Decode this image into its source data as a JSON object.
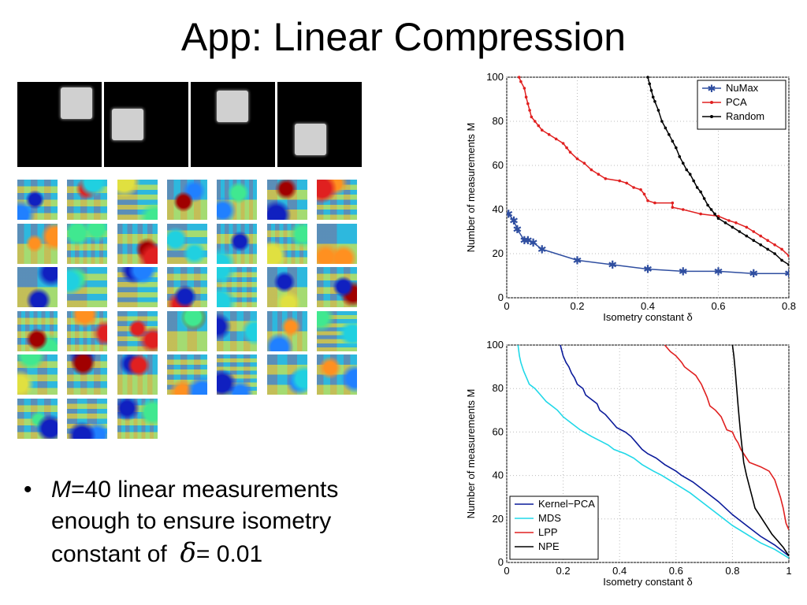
{
  "title": "App: Linear Compression",
  "bullet": {
    "var": "M",
    "line1_rest": "=40 linear measurements",
    "line2": "enough to ensure isometry",
    "line3_pre": "constant of",
    "symbol": "δ",
    "line3_post": "= 0.01"
  },
  "colors": {
    "numax": "#2f4ea0",
    "pca": "#e02020",
    "random": "#000000",
    "kernel_pca": "#0a1a9a",
    "mds": "#20d8e8",
    "lpp": "#e02020",
    "npe": "#000000"
  },
  "chart_data": [
    {
      "type": "line",
      "xlabel": "Isometry constant δ",
      "ylabel": "Number of measurements M",
      "xlim": [
        0,
        0.8
      ],
      "ylim": [
        0,
        100
      ],
      "xticks": [
        "0",
        "0.2",
        "0.4",
        "0.6",
        "0.8"
      ],
      "yticks": [
        "0",
        "20",
        "40",
        "60",
        "80",
        "100"
      ],
      "legend": "top-right",
      "series": [
        {
          "name": "NuMax",
          "color": "#2f4ea0",
          "marker": "star",
          "points": [
            [
              0.005,
              38
            ],
            [
              0.02,
              35
            ],
            [
              0.03,
              31
            ],
            [
              0.05,
              26
            ],
            [
              0.06,
              26
            ],
            [
              0.075,
              25
            ],
            [
              0.1,
              22
            ],
            [
              0.2,
              17
            ],
            [
              0.3,
              15
            ],
            [
              0.4,
              13
            ],
            [
              0.5,
              12
            ],
            [
              0.6,
              12
            ],
            [
              0.7,
              11
            ],
            [
              0.8,
              11
            ]
          ]
        },
        {
          "name": "PCA",
          "color": "#e02020",
          "marker": "dot",
          "points": [
            [
              0.035,
              100
            ],
            [
              0.04,
              98
            ],
            [
              0.05,
              95
            ],
            [
              0.055,
              91
            ],
            [
              0.06,
              88
            ],
            [
              0.065,
              85
            ],
            [
              0.07,
              82
            ],
            [
              0.08,
              80
            ],
            [
              0.09,
              78
            ],
            [
              0.1,
              76
            ],
            [
              0.12,
              74
            ],
            [
              0.14,
              72
            ],
            [
              0.16,
              70
            ],
            [
              0.17,
              68
            ],
            [
              0.18,
              66
            ],
            [
              0.2,
              63
            ],
            [
              0.22,
              61
            ],
            [
              0.24,
              58
            ],
            [
              0.26,
              56
            ],
            [
              0.28,
              54
            ],
            [
              0.32,
              53
            ],
            [
              0.34,
              52
            ],
            [
              0.36,
              50
            ],
            [
              0.38,
              49
            ],
            [
              0.39,
              47
            ],
            [
              0.4,
              44
            ],
            [
              0.42,
              43
            ],
            [
              0.47,
              43
            ],
            [
              0.47,
              41
            ],
            [
              0.5,
              40
            ],
            [
              0.55,
              38
            ],
            [
              0.6,
              37
            ],
            [
              0.63,
              35
            ],
            [
              0.65,
              34
            ],
            [
              0.68,
              32
            ],
            [
              0.7,
              30
            ],
            [
              0.72,
              28
            ],
            [
              0.74,
              26
            ],
            [
              0.76,
              24
            ],
            [
              0.78,
              22
            ],
            [
              0.8,
              19
            ]
          ]
        },
        {
          "name": "Random",
          "color": "#000000",
          "marker": "dot",
          "points": [
            [
              0.4,
              100
            ],
            [
              0.405,
              97
            ],
            [
              0.41,
              94
            ],
            [
              0.415,
              91
            ],
            [
              0.42,
              89
            ],
            [
              0.43,
              85
            ],
            [
              0.44,
              80
            ],
            [
              0.45,
              77
            ],
            [
              0.46,
              74
            ],
            [
              0.47,
              71
            ],
            [
              0.48,
              68
            ],
            [
              0.49,
              64
            ],
            [
              0.5,
              61
            ],
            [
              0.51,
              58
            ],
            [
              0.52,
              56
            ],
            [
              0.53,
              53
            ],
            [
              0.54,
              50
            ],
            [
              0.55,
              48
            ],
            [
              0.56,
              45
            ],
            [
              0.57,
              42
            ],
            [
              0.58,
              40
            ],
            [
              0.59,
              38
            ],
            [
              0.6,
              36
            ],
            [
              0.62,
              34
            ],
            [
              0.64,
              32
            ],
            [
              0.66,
              30
            ],
            [
              0.68,
              28
            ],
            [
              0.7,
              26
            ],
            [
              0.72,
              24
            ],
            [
              0.74,
              22
            ],
            [
              0.76,
              20
            ],
            [
              0.78,
              17
            ],
            [
              0.8,
              15
            ]
          ]
        }
      ]
    },
    {
      "type": "line",
      "xlabel": "Isometry constant δ",
      "ylabel": "Number of measurements M",
      "xlim": [
        0,
        1
      ],
      "ylim": [
        0,
        100
      ],
      "xticks": [
        "0",
        "0.2",
        "0.4",
        "0.6",
        "0.8",
        "1"
      ],
      "yticks": [
        "0",
        "20",
        "40",
        "60",
        "80",
        "100"
      ],
      "legend": "bottom-left",
      "series": [
        {
          "name": "Kernel−PCA",
          "color": "#0a1a9a",
          "points": [
            [
              0.19,
              100
            ],
            [
              0.2,
              95
            ],
            [
              0.21,
              92
            ],
            [
              0.22,
              90
            ],
            [
              0.23,
              87
            ],
            [
              0.24,
              85
            ],
            [
              0.25,
              82
            ],
            [
              0.27,
              80
            ],
            [
              0.28,
              77
            ],
            [
              0.3,
              75
            ],
            [
              0.32,
              73
            ],
            [
              0.33,
              70
            ],
            [
              0.35,
              68
            ],
            [
              0.37,
              65
            ],
            [
              0.39,
              62
            ],
            [
              0.42,
              60
            ],
            [
              0.44,
              58
            ],
            [
              0.46,
              55
            ],
            [
              0.48,
              52
            ],
            [
              0.5,
              50
            ],
            [
              0.53,
              48
            ],
            [
              0.56,
              45
            ],
            [
              0.6,
              42
            ],
            [
              0.62,
              40
            ],
            [
              0.66,
              37
            ],
            [
              0.7,
              33
            ],
            [
              0.75,
              28
            ],
            [
              0.8,
              22
            ],
            [
              0.85,
              17
            ],
            [
              0.9,
              12
            ],
            [
              0.95,
              8
            ],
            [
              1.0,
              3
            ]
          ]
        },
        {
          "name": "MDS",
          "color": "#20d8e8",
          "points": [
            [
              0.04,
              100
            ],
            [
              0.045,
              95
            ],
            [
              0.05,
              92
            ],
            [
              0.06,
              88
            ],
            [
              0.07,
              85
            ],
            [
              0.08,
              82
            ],
            [
              0.1,
              80
            ],
            [
              0.12,
              77
            ],
            [
              0.14,
              74
            ],
            [
              0.16,
              72
            ],
            [
              0.18,
              70
            ],
            [
              0.2,
              67
            ],
            [
              0.23,
              64
            ],
            [
              0.26,
              61
            ],
            [
              0.3,
              58
            ],
            [
              0.33,
              56
            ],
            [
              0.36,
              54
            ],
            [
              0.38,
              52
            ],
            [
              0.42,
              50
            ],
            [
              0.45,
              48
            ],
            [
              0.48,
              45
            ],
            [
              0.52,
              42
            ],
            [
              0.55,
              40
            ],
            [
              0.6,
              36
            ],
            [
              0.65,
              32
            ],
            [
              0.7,
              27
            ],
            [
              0.75,
              22
            ],
            [
              0.8,
              17
            ],
            [
              0.85,
              13
            ],
            [
              0.9,
              9
            ],
            [
              0.95,
              6
            ],
            [
              1.0,
              2
            ]
          ]
        },
        {
          "name": "LPP",
          "color": "#e02020",
          "points": [
            [
              0.56,
              100
            ],
            [
              0.58,
              97
            ],
            [
              0.6,
              95
            ],
            [
              0.62,
              92
            ],
            [
              0.63,
              90
            ],
            [
              0.65,
              88
            ],
            [
              0.67,
              86
            ],
            [
              0.68,
              84
            ],
            [
              0.69,
              82
            ],
            [
              0.7,
              79
            ],
            [
              0.71,
              76
            ],
            [
              0.72,
              72
            ],
            [
              0.74,
              70
            ],
            [
              0.76,
              67
            ],
            [
              0.77,
              64
            ],
            [
              0.78,
              61
            ],
            [
              0.8,
              60
            ],
            [
              0.81,
              57
            ],
            [
              0.82,
              55
            ],
            [
              0.83,
              52
            ],
            [
              0.84,
              50
            ],
            [
              0.85,
              48
            ],
            [
              0.86,
              46
            ],
            [
              0.9,
              44
            ],
            [
              0.93,
              42
            ],
            [
              0.95,
              38
            ],
            [
              0.96,
              34
            ],
            [
              0.97,
              30
            ],
            [
              0.98,
              25
            ],
            [
              0.99,
              18
            ],
            [
              1.0,
              15
            ]
          ]
        },
        {
          "name": "NPE",
          "color": "#000000",
          "points": [
            [
              0.8,
              100
            ],
            [
              0.805,
              95
            ],
            [
              0.81,
              88
            ],
            [
              0.815,
              80
            ],
            [
              0.82,
              72
            ],
            [
              0.825,
              65
            ],
            [
              0.83,
              58
            ],
            [
              0.835,
              52
            ],
            [
              0.84,
              46
            ],
            [
              0.85,
              40
            ],
            [
              0.86,
              35
            ],
            [
              0.87,
              30
            ],
            [
              0.88,
              25
            ],
            [
              0.9,
              21
            ],
            [
              0.92,
              17
            ],
            [
              0.94,
              13
            ],
            [
              0.96,
              10
            ],
            [
              0.98,
              7
            ],
            [
              1.0,
              3
            ]
          ]
        }
      ]
    }
  ]
}
